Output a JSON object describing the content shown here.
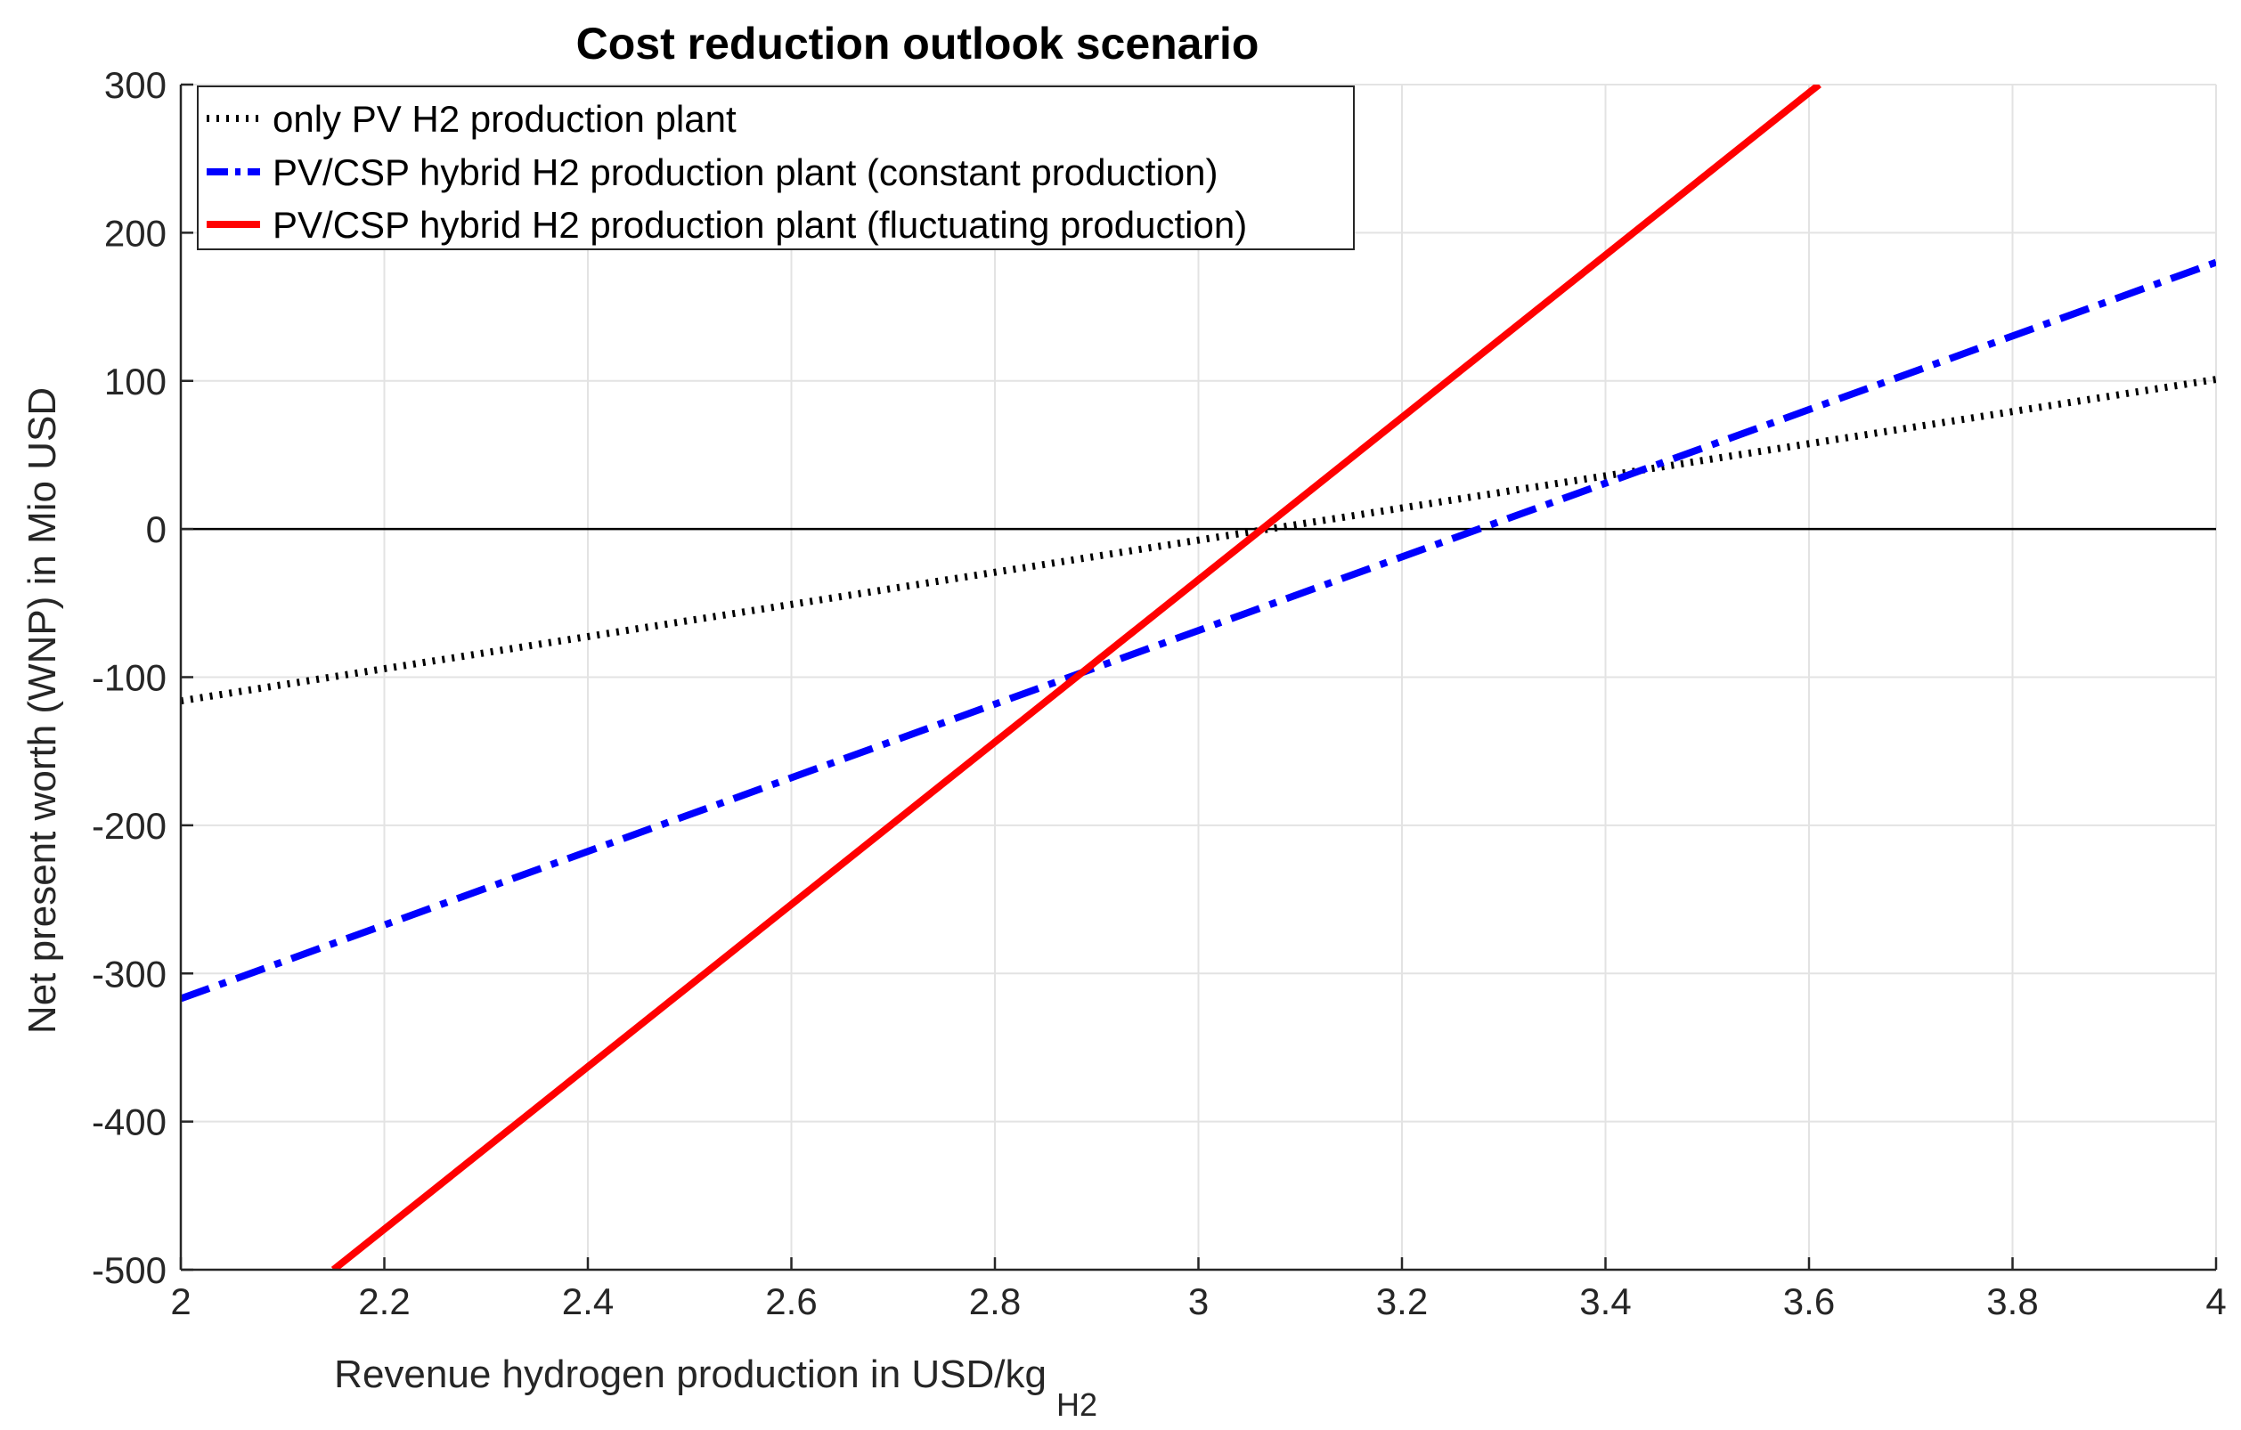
{
  "chart_data": {
    "type": "line",
    "title": "Cost reduction outlook scenario",
    "xlabel": "Revenue hydrogen production in USD/kg",
    "xlabel_subscript": "H2",
    "ylabel": "Net present worth (WNP) in Mio USD",
    "xlim": [
      2,
      4
    ],
    "ylim": [
      -500,
      300
    ],
    "x_ticks": [
      2,
      2.2,
      2.4,
      2.6,
      2.8,
      3,
      3.2,
      3.4,
      3.6,
      3.8,
      4
    ],
    "x_tick_labels": [
      "2",
      "2.2",
      "2.4",
      "2.6",
      "2.8",
      "3",
      "3.2",
      "3.4",
      "3.6",
      "3.8",
      "4"
    ],
    "y_ticks": [
      -500,
      -400,
      -300,
      -200,
      -100,
      0,
      100,
      200,
      300
    ],
    "y_tick_labels": [
      "-500",
      "-400",
      "-300",
      "-200",
      "-100",
      "0",
      "100",
      "200",
      "300"
    ],
    "grid": true,
    "reference_line": {
      "y": 0,
      "color": "#000000"
    },
    "legend_position": "top-left",
    "series": [
      {
        "name": "only PV H2 production plant",
        "color": "#000000",
        "style": "dotted",
        "x": [
          2,
          4
        ],
        "y": [
          -116,
          101
        ]
      },
      {
        "name": "PV/CSP hybrid H2 production plant (constant production)",
        "color": "#0000ff",
        "style": "dashdot",
        "x": [
          2,
          4
        ],
        "y": [
          -317,
          180
        ]
      },
      {
        "name": "PV/CSP hybrid H2 production plant (fluctuating production)",
        "color": "#ff0000",
        "style": "solid",
        "x": [
          2.15,
          3.61
        ],
        "y": [
          -500,
          300
        ]
      }
    ]
  }
}
